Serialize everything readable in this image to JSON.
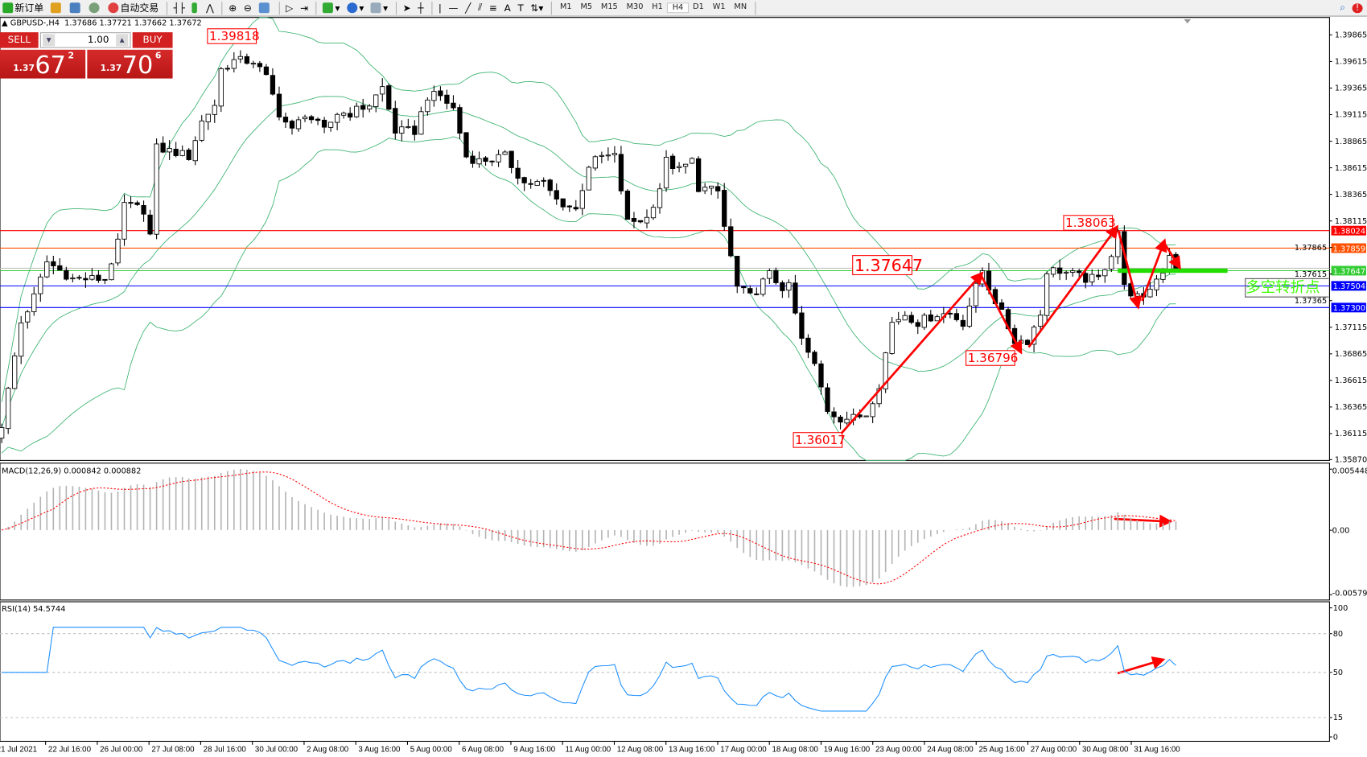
{
  "toolbar": {
    "new_order": "新订单",
    "auto_trading": "自动交易",
    "timeframes": [
      "M1",
      "M5",
      "M15",
      "M30",
      "H1",
      "H4",
      "D1",
      "W1",
      "MN"
    ],
    "active_timeframe": "H4",
    "notification_badge": "!"
  },
  "chart_header": {
    "symbol": "GBPUSD-,H4",
    "ohlc": "1.37686 1.37721 1.37662 1.37672"
  },
  "trade_panel": {
    "sell_label": "SELL",
    "buy_label": "BUY",
    "lot": "1.00",
    "sell_price": {
      "small": "1.37",
      "big": "67",
      "sup": "2"
    },
    "buy_price": {
      "small": "1.37",
      "big": "70",
      "sup": "6"
    }
  },
  "annotation_text": "多空转折点",
  "colors": {
    "bollinger": "#3cb371",
    "macd_hist": "#b4b4b4",
    "macd_signal": "#ff0000",
    "rsi": "#1e90ff",
    "arrow": "#ff0000",
    "pivot_bar": "#22dd00"
  },
  "chart_data": [
    {
      "type": "candlestick",
      "symbol": "GBPUSD",
      "timeframe": "H4",
      "indicators": [
        "Bollinger Bands (20,2)"
      ],
      "ylim": [
        1.3587,
        1.39865
      ],
      "y_ticks": [
        "1.39865",
        "1.39615",
        "1.39365",
        "1.39115",
        "1.38865",
        "1.38615",
        "1.38365",
        "1.38115",
        "1.37865",
        "1.37615",
        "1.37365",
        "1.37115",
        "1.36865",
        "1.36615",
        "1.36365",
        "1.36115",
        "1.35870"
      ],
      "x_labels": [
        "21 Jul 2021",
        "22 Jul 16:00",
        "26 Jul 00:00",
        "27 Jul 08:00",
        "28 Jul 16:00",
        "30 Jul 00:00",
        "2 Aug 08:00",
        "3 Aug 16:00",
        "5 Aug 00:00",
        "6 Aug 08:00",
        "9 Aug 16:00",
        "11 Aug 00:00",
        "12 Aug 08:00",
        "13 Aug 16:00",
        "17 Aug 00:00",
        "18 Aug 08:00",
        "19 Aug 16:00",
        "23 Aug 00:00",
        "24 Aug 08:00",
        "25 Aug 16:00",
        "27 Aug 00:00",
        "30 Aug 08:00",
        "31 Aug 16:00"
      ],
      "close_path": [
        [
          0,
          1.362
        ],
        [
          3,
          1.3716
        ],
        [
          5,
          1.374
        ],
        [
          7,
          1.3773
        ],
        [
          11,
          1.3757
        ],
        [
          14,
          1.3757
        ],
        [
          16,
          1.3757
        ],
        [
          18,
          1.379
        ],
        [
          19,
          1.3827
        ],
        [
          22,
          1.3822
        ],
        [
          23,
          1.3798
        ],
        [
          24,
          1.388
        ],
        [
          27,
          1.3876
        ],
        [
          29,
          1.3872
        ],
        [
          31,
          1.3905
        ],
        [
          33,
          1.3921
        ],
        [
          34,
          1.3954
        ],
        [
          36,
          1.3962
        ],
        [
          39,
          1.3962
        ],
        [
          41,
          1.3946
        ],
        [
          43,
          1.3913
        ],
        [
          45,
          1.3896
        ],
        [
          47,
          1.3913
        ],
        [
          50,
          1.3896
        ],
        [
          52,
          1.3913
        ],
        [
          54,
          1.3913
        ],
        [
          57,
          1.3921
        ],
        [
          59,
          1.3937
        ],
        [
          61,
          1.3896
        ],
        [
          64,
          1.3896
        ],
        [
          66,
          1.3929
        ],
        [
          68,
          1.3929
        ],
        [
          70,
          1.3917
        ],
        [
          72,
          1.3872
        ],
        [
          74,
          1.3868
        ],
        [
          78,
          1.3872
        ],
        [
          81,
          1.3847
        ],
        [
          84,
          1.3847
        ],
        [
          86,
          1.3831
        ],
        [
          89,
          1.3822
        ],
        [
          91,
          1.3864
        ],
        [
          93,
          1.3872
        ],
        [
          95,
          1.3872
        ],
        [
          97,
          1.381
        ],
        [
          100,
          1.3814
        ],
        [
          102,
          1.3843
        ],
        [
          103,
          1.3868
        ],
        [
          105,
          1.3859
        ],
        [
          107,
          1.3868
        ],
        [
          108,
          1.3843
        ],
        [
          111,
          1.3839
        ],
        [
          112,
          1.3806
        ],
        [
          114,
          1.3749
        ],
        [
          116,
          1.374
        ],
        [
          119,
          1.3761
        ],
        [
          121,
          1.3749
        ],
        [
          122,
          1.3749
        ],
        [
          124,
          1.3699
        ],
        [
          126,
          1.3675
        ],
        [
          128,
          1.3634
        ],
        [
          130,
          1.3626
        ],
        [
          132,
          1.3626
        ],
        [
          134,
          1.363
        ],
        [
          136,
          1.3658
        ],
        [
          138,
          1.3716
        ],
        [
          140,
          1.3724
        ],
        [
          142,
          1.3716
        ],
        [
          145,
          1.3724
        ],
        [
          147,
          1.3724
        ],
        [
          149,
          1.3716
        ],
        [
          151,
          1.3749
        ],
        [
          152,
          1.3765
        ],
        [
          153,
          1.3749
        ],
        [
          155,
          1.3724
        ],
        [
          157,
          1.3699
        ],
        [
          159,
          1.3699
        ],
        [
          161,
          1.3724
        ],
        [
          162,
          1.3765
        ],
        [
          164,
          1.3765
        ],
        [
          166,
          1.3761
        ],
        [
          168,
          1.3757
        ],
        [
          170,
          1.3757
        ],
        [
          172,
          1.3781
        ],
        [
          173,
          1.3802
        ],
        [
          174,
          1.3749
        ],
        [
          176,
          1.374
        ],
        [
          177,
          1.3736
        ],
        [
          178,
          1.3749
        ],
        [
          180,
          1.3765
        ],
        [
          181,
          1.3781
        ],
        [
          182,
          1.3767
        ]
      ],
      "horizontal_lines": [
        {
          "price": "1.38024",
          "color": "#ff0000"
        },
        {
          "price": "1.37859",
          "color": "#ff5000"
        },
        {
          "price": "1.37647",
          "color": "#33cc33"
        },
        {
          "price": "1.37504",
          "color": "#0000ff"
        },
        {
          "price": "1.37300",
          "color": "#0000ff"
        }
      ],
      "price_labels": [
        "1.39818",
        "1.37647",
        "1.38063",
        "1.36796",
        "1.36017"
      ]
    },
    {
      "type": "bar",
      "title": "MACD(12,26,9) 0.000842 0.000882",
      "ylim": [
        -0.00579,
        0.005448
      ],
      "y_ticks": [
        "0.005448",
        "0.00",
        "-0.00579"
      ]
    },
    {
      "type": "line",
      "title": "RSI(14) 54.5744",
      "ylim": [
        0,
        100
      ],
      "y_ticks": [
        "100",
        "80",
        "50",
        "15",
        "0"
      ],
      "levels": [
        80,
        50,
        15
      ]
    }
  ]
}
